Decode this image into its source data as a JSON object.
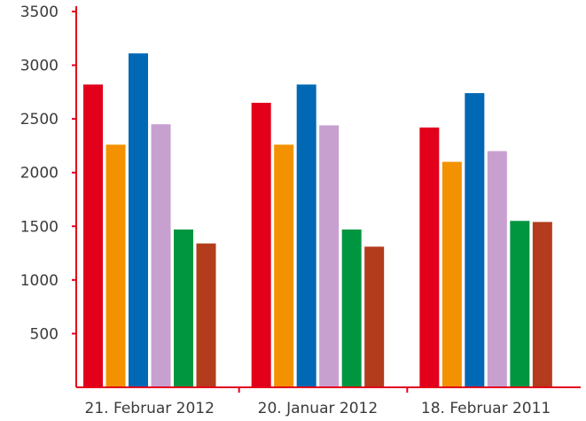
{
  "chart_data": {
    "type": "bar",
    "title": "",
    "xlabel": "",
    "ylabel": "",
    "ylim": [
      0,
      3500
    ],
    "yticks": [
      500,
      1000,
      1500,
      2000,
      2500,
      3000,
      3500
    ],
    "grid": false,
    "legend": "none",
    "categories": [
      "21. Februar 2012",
      "20. Januar 2012",
      "18. Februar 2011"
    ],
    "series": [
      {
        "color": "#e3001b",
        "values": [
          2820,
          2650,
          2420
        ]
      },
      {
        "color": "#f39200",
        "values": [
          2260,
          2260,
          2100
        ]
      },
      {
        "color": "#0068b4",
        "values": [
          3110,
          2820,
          2740
        ]
      },
      {
        "color": "#c8a0d0",
        "values": [
          2450,
          2440,
          2200
        ]
      },
      {
        "color": "#009640",
        "values": [
          1470,
          1470,
          1550
        ]
      },
      {
        "color": "#b23c1c",
        "values": [
          1340,
          1310,
          1540
        ]
      }
    ],
    "axis_color": "#e3001b"
  }
}
